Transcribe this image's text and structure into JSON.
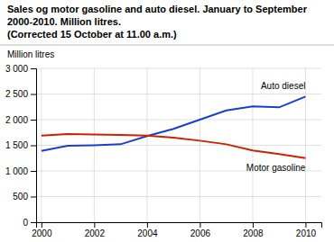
{
  "chart_data": {
    "type": "line",
    "title": "Sales og motor gasoline and auto diesel. January to September 2000-2010. Million litres.",
    "subtitle": "(Corrected 15 October at 11.00 a.m.)",
    "y_label": "Million litres",
    "x": [
      2000,
      2001,
      2002,
      2003,
      2004,
      2005,
      2006,
      2007,
      2008,
      2009,
      2010
    ],
    "series": [
      {
        "name": "Auto diesel",
        "color": "#1a3fcc",
        "values": [
          1390,
          1490,
          1500,
          1520,
          1680,
          1820,
          2000,
          2180,
          2260,
          2240,
          2450
        ]
      },
      {
        "name": "Motor gasoline",
        "color": "#cc2200",
        "values": [
          1690,
          1720,
          1710,
          1700,
          1690,
          1650,
          1590,
          1520,
          1400,
          1330,
          1250
        ]
      }
    ],
    "xlim": [
      1999.8,
      2010.6
    ],
    "xticks": [
      2000,
      2002,
      2004,
      2006,
      2008,
      2010
    ],
    "ylim": [
      0,
      3000
    ],
    "yticks": [
      0,
      500,
      {
        "value": 1000,
        "label": "1 000"
      },
      {
        "value": 1500,
        "label": "1 500"
      },
      {
        "value": 2000,
        "label": "2 000"
      },
      {
        "value": 2500,
        "label": "2 500"
      },
      {
        "value": 3000,
        "label": "3 000"
      }
    ],
    "grid": true
  }
}
